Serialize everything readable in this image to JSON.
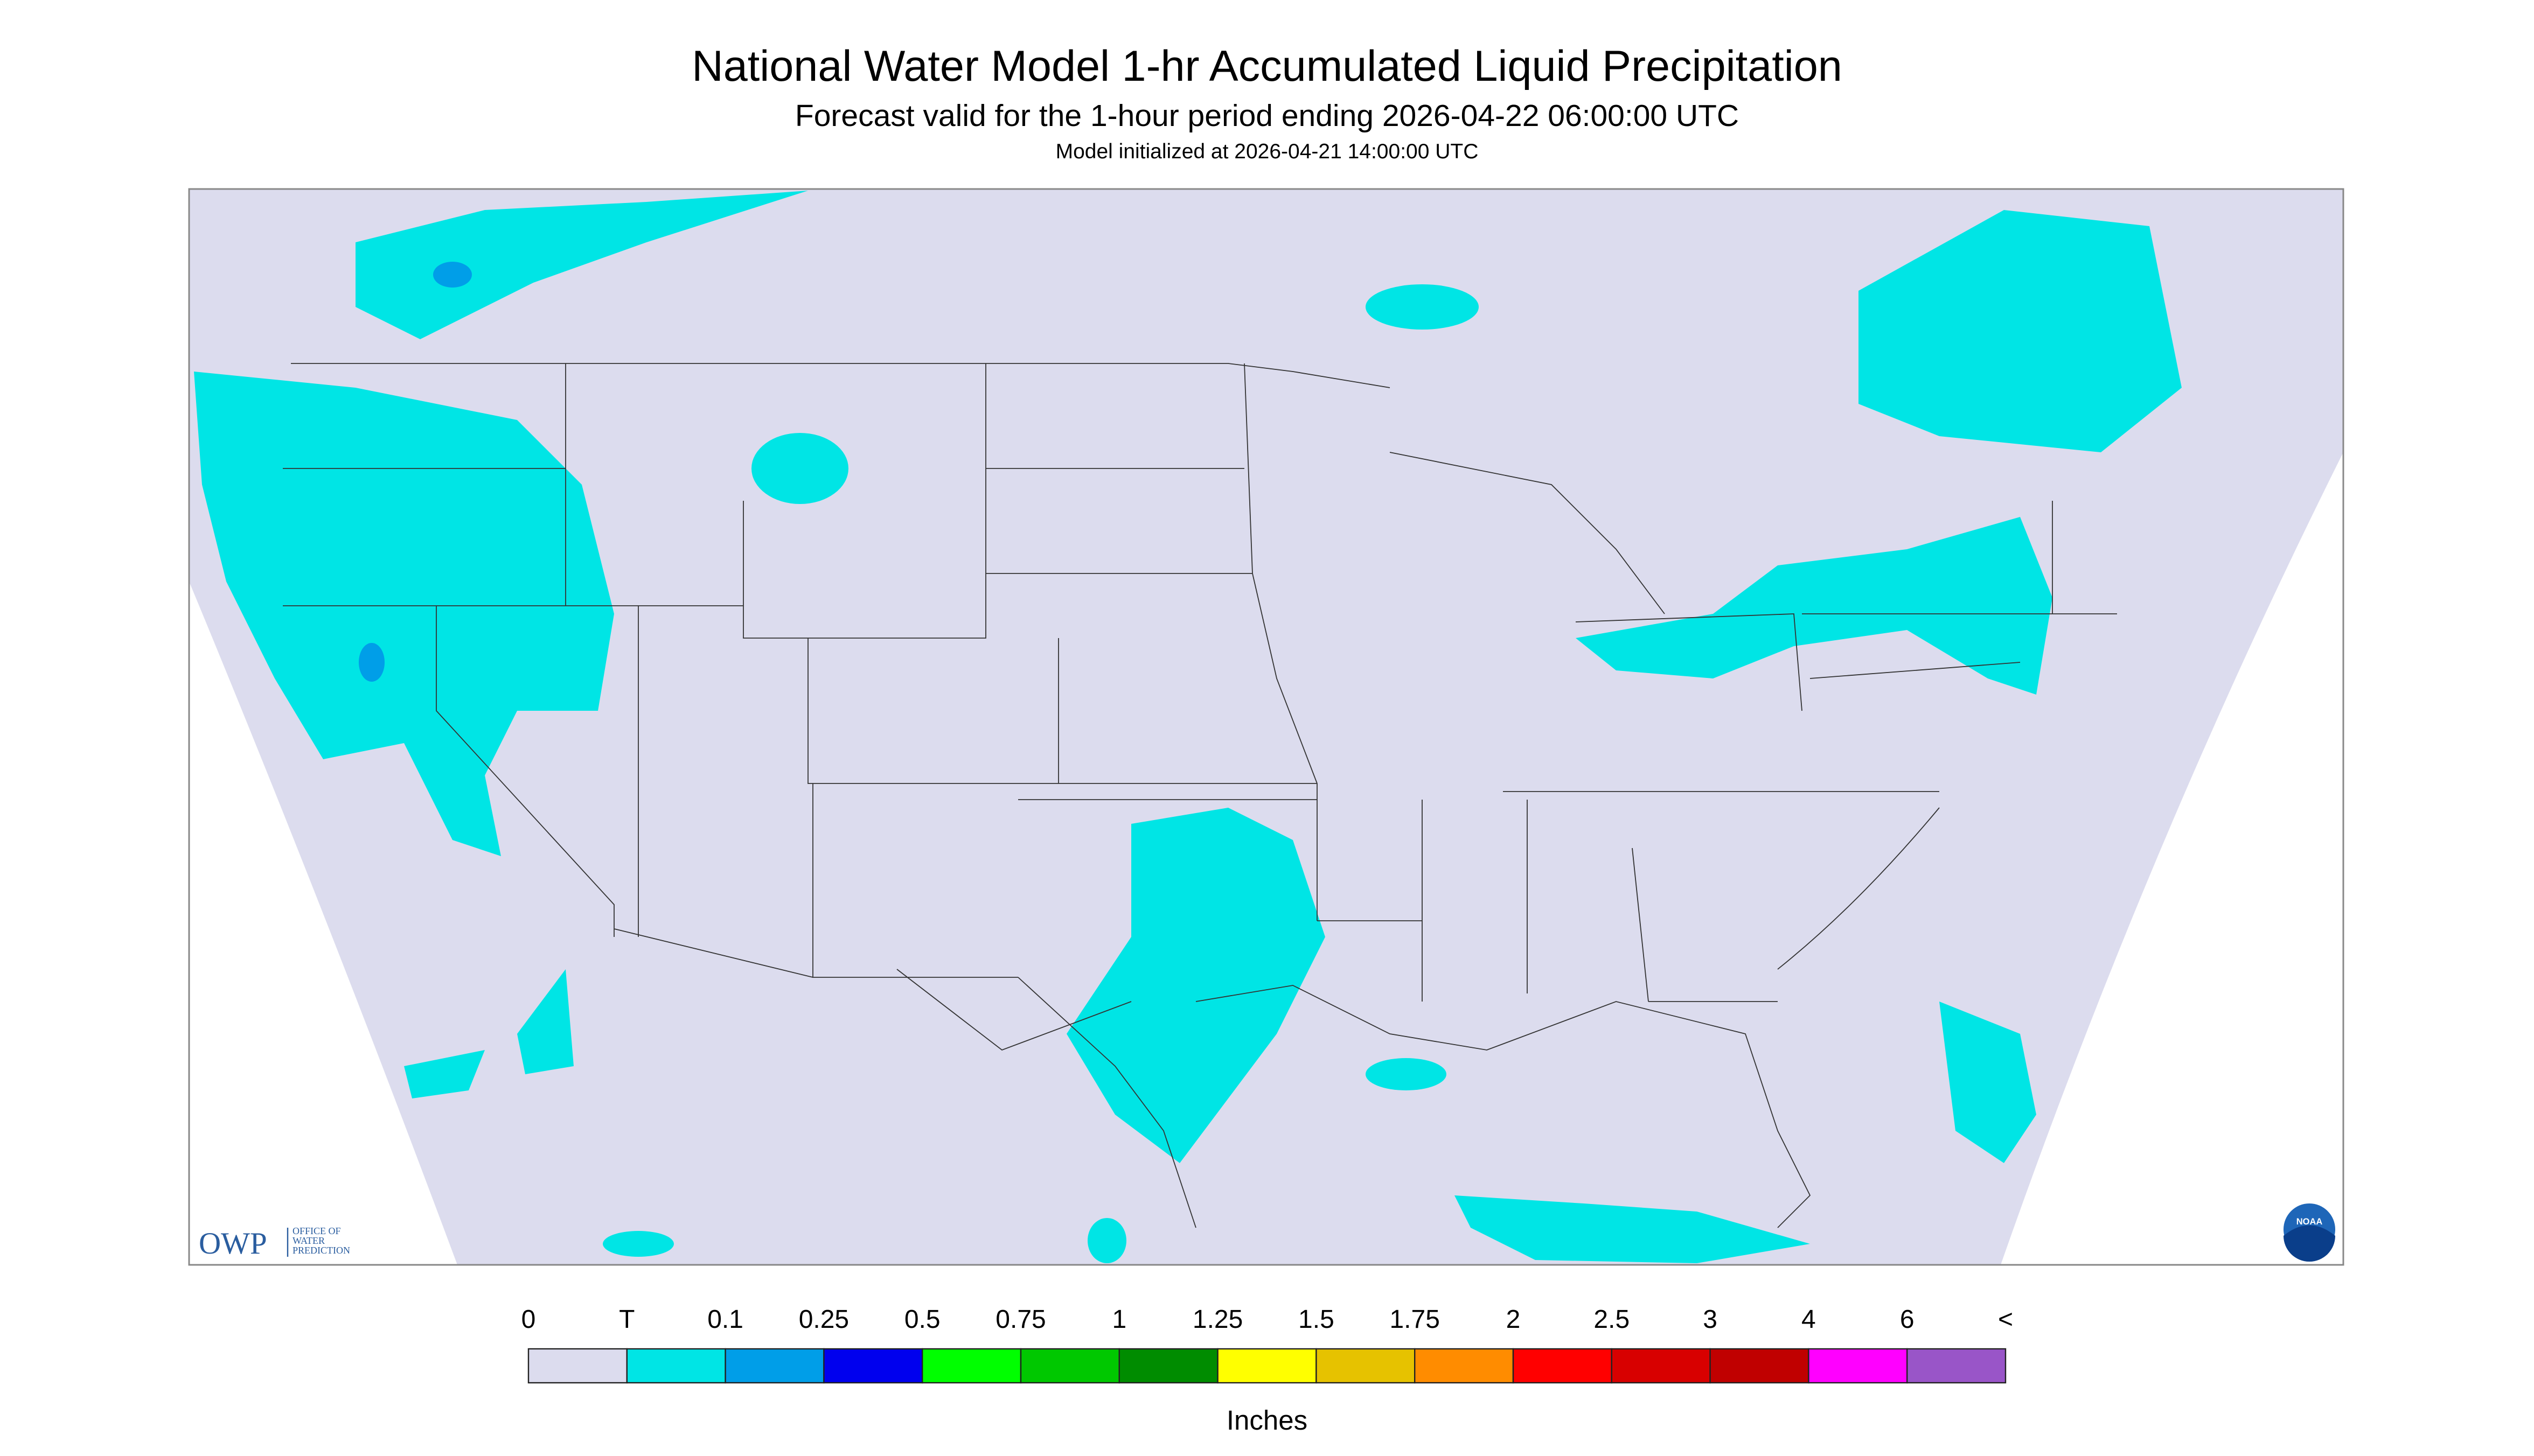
{
  "header": {
    "title": "National Water Model 1-hr Accumulated Liquid Precipitation",
    "subtitle": "Forecast valid for the 1-hour period ending 2026-04-22 06:00:00 UTC",
    "initialized": "Model initialized at 2026-04-21 14:00:00 UTC"
  },
  "legend": {
    "labels": [
      "0",
      "T",
      "0.1",
      "0.25",
      "0.5",
      "0.75",
      "1",
      "1.25",
      "1.5",
      "1.75",
      "2",
      "2.5",
      "3",
      "4",
      "6",
      "<"
    ],
    "colors": [
      "#dcdcee",
      "#00e5e5",
      "#009ee8",
      "#0000ee",
      "#00ff00",
      "#00c800",
      "#008c00",
      "#ffff00",
      "#e6c200",
      "#ff8c00",
      "#ff0000",
      "#d80000",
      "#c00000",
      "#ff00ff",
      "#9955c8"
    ],
    "unit": "Inches"
  },
  "logo": {
    "acronym": "OWP",
    "lines": [
      "OFFICE OF",
      "WATER",
      "PREDICTION"
    ],
    "badge": "NOAA"
  }
}
